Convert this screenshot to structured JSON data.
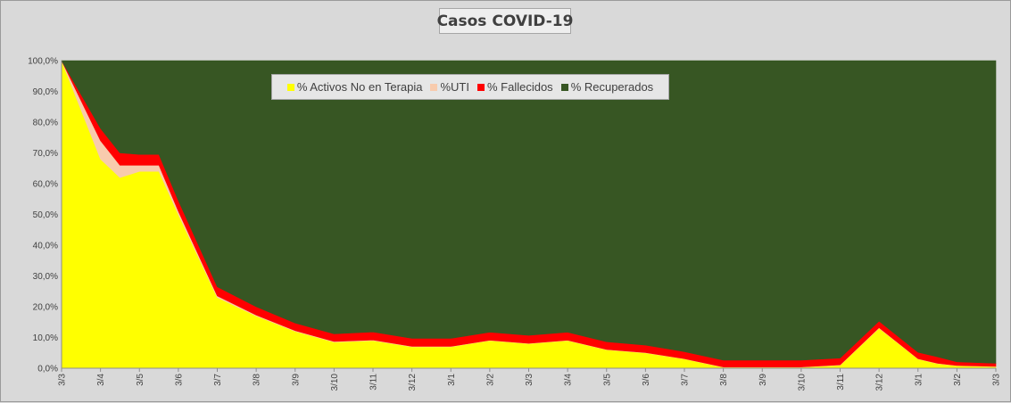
{
  "chart_data": {
    "type": "area",
    "stacked": "percent",
    "title": "Casos COVID-19",
    "xlabel": "",
    "ylabel": "",
    "ylim": [
      0,
      100
    ],
    "grid": false,
    "legend_position": "top",
    "y_ticks": [
      "0,0%",
      "10,0%",
      "20,0%",
      "30,0%",
      "40,0%",
      "50,0%",
      "60,0%",
      "70,0%",
      "80,0%",
      "90,0%",
      "100,0%"
    ],
    "x_ticks": [
      "3/3",
      "3/4",
      "3/5",
      "3/6",
      "3/7",
      "3/8",
      "3/9",
      "3/10",
      "3/11",
      "3/12",
      "3/1",
      "3/2",
      "3/3",
      "3/4",
      "3/5",
      "3/6",
      "3/7",
      "3/8",
      "3/9",
      "3/10",
      "3/11",
      "3/12",
      "3/1",
      "3/2",
      "3/3"
    ],
    "x_index": [
      0,
      1,
      1.5,
      2,
      2.5,
      3,
      4,
      5,
      6,
      7,
      8,
      9,
      10,
      11,
      12,
      13,
      14,
      15,
      16,
      17,
      18,
      19,
      20,
      21,
      22,
      22.5,
      23,
      24
    ],
    "series": [
      {
        "name": "% Activos No en Terapia",
        "color": "#ffff00",
        "values": [
          100,
          68,
          62,
          64,
          64,
          50,
          23,
          17,
          12,
          8.5,
          9,
          7,
          7,
          9,
          8,
          9,
          6,
          5,
          3,
          0.3,
          0.3,
          0.3,
          1,
          13,
          3,
          1.5,
          0.8,
          0.5
        ]
      },
      {
        "name": "%UTI",
        "color": "#f8cbad",
        "values": [
          0,
          6,
          4,
          2,
          2,
          1,
          0.5,
          0.3,
          0.2,
          0.2,
          0.2,
          0.1,
          0.1,
          0.1,
          0.1,
          0.1,
          0.1,
          0.1,
          0.1,
          0.1,
          0.1,
          0.1,
          0.1,
          0.2,
          0.1,
          0.1,
          0.1,
          0.1
        ]
      },
      {
        "name": "% Fallecidos",
        "color": "#ff0000",
        "values": [
          0,
          4,
          4,
          3.5,
          3.5,
          3.5,
          3,
          2.7,
          2.5,
          2.5,
          2.6,
          2.6,
          2.6,
          2.6,
          2.6,
          2.6,
          2.5,
          2.4,
          2.3,
          2.2,
          2.2,
          2.2,
          2.2,
          2.1,
          2.1,
          2.1,
          1.2,
          1
        ]
      },
      {
        "name": "% Recuperados",
        "color": "#375623",
        "values": [
          0,
          22,
          30,
          30.5,
          30.5,
          45.5,
          73.5,
          80,
          85.3,
          88.8,
          88.2,
          90.3,
          90.3,
          88.3,
          89.3,
          88.3,
          91.4,
          92.5,
          94.6,
          97.4,
          97.4,
          97.4,
          96.7,
          84.7,
          94.8,
          96.3,
          97.9,
          98.4
        ]
      }
    ]
  }
}
